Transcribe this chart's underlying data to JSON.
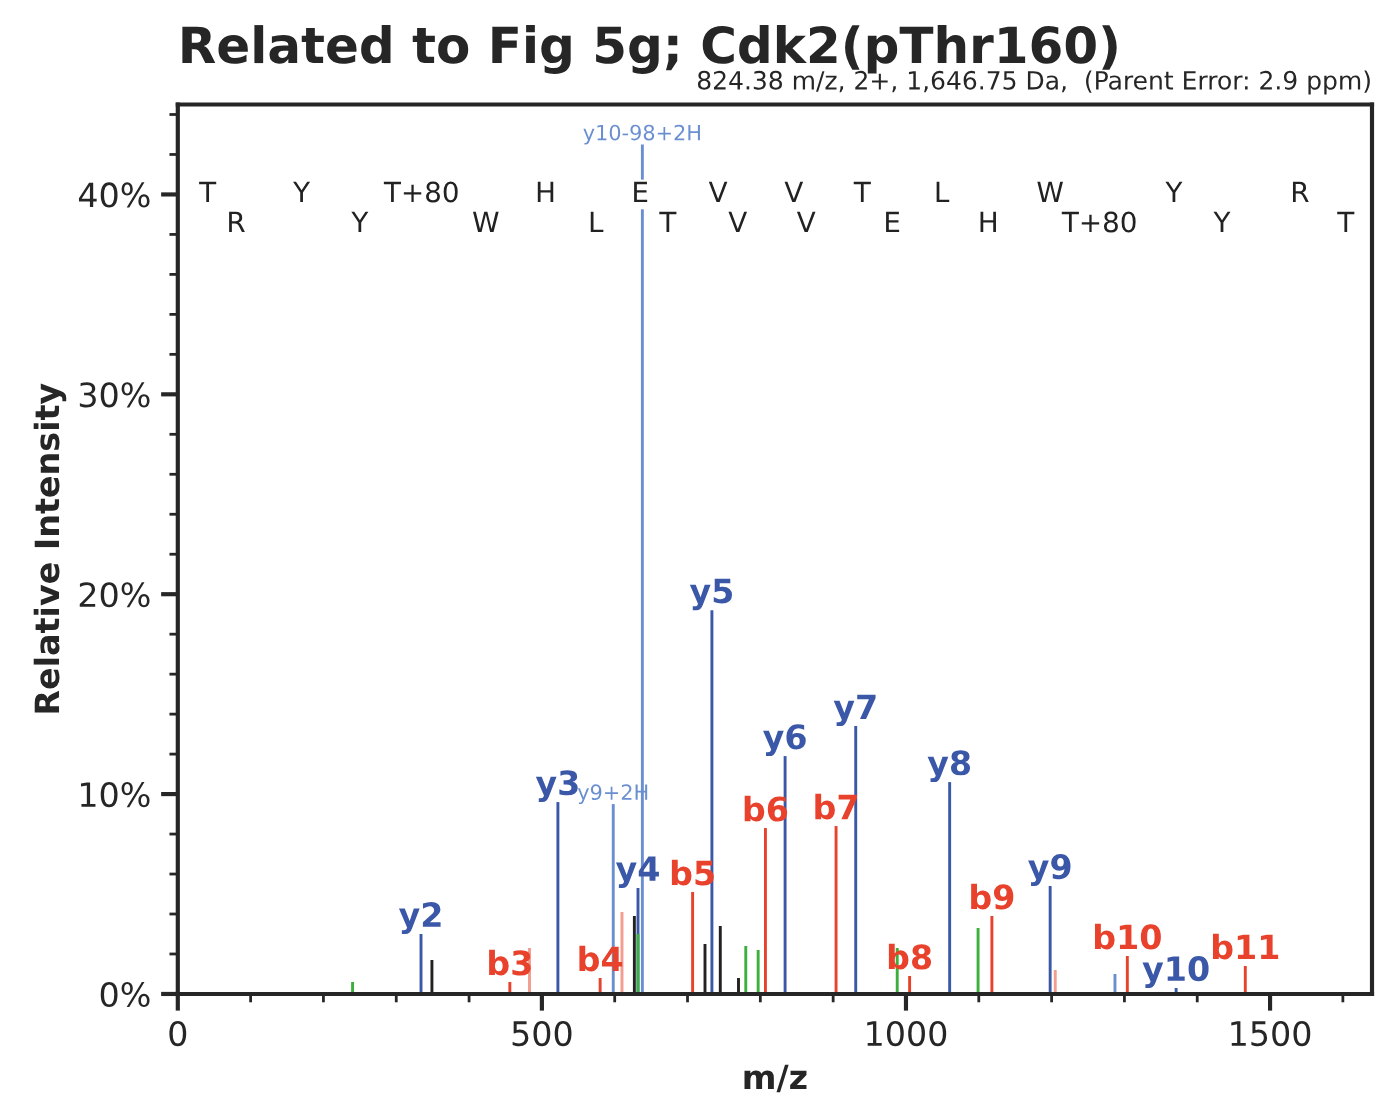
{
  "chart_data": {
    "type": "bar",
    "title": "Related to Fig 5g; Cdk2(pThr160)",
    "subtitle": "824.38 m/z, 2+, 1,646.75 Da,  (Parent Error: 2.9 ppm)",
    "xlabel": "m/z",
    "ylabel": "Relative Intensity",
    "xlim": [
      0,
      1640
    ],
    "xticks": [
      0,
      500,
      1000,
      1500
    ],
    "ylim": [
      0,
      44.5
    ],
    "yticks": [
      {
        "value": 0,
        "label": "0%"
      },
      {
        "value": 10,
        "label": "10%"
      },
      {
        "value": 20,
        "label": "20%"
      },
      {
        "value": 30,
        "label": "30%"
      },
      {
        "value": 40,
        "label": "40%"
      }
    ],
    "grid": false,
    "legend": false,
    "series": [
      {
        "color": "#3b58a8",
        "x": [
          334,
          522,
          632,
          733.5,
          834,
          931,
          1060,
          1198,
          1371
        ],
        "values": [
          3.0,
          9.6,
          5.3,
          19.2,
          11.9,
          13.4,
          10.6,
          5.4,
          0.3
        ],
        "value_labels": [
          "y2",
          "y3",
          "y4",
          "y5",
          "y6",
          "y7",
          "y8",
          "y9",
          "y10"
        ]
      },
      {
        "color": "#e8412c",
        "x": [
          456,
          580,
          707,
          807,
          904,
          1005,
          1118,
          1304,
          1466
        ],
        "values": [
          0.6,
          0.8,
          5.1,
          8.3,
          8.4,
          0.9,
          3.9,
          1.9,
          1.4
        ],
        "value_labels": [
          "b3",
          "b4",
          "b5",
          "b6",
          "b7",
          "b8",
          "b9",
          "b10",
          "b11"
        ]
      },
      {
        "color": "#6a8fd0",
        "x": [
          598,
          638,
          1287
        ],
        "values": [
          9.5,
          42.5,
          1.0
        ],
        "value_labels": [
          "y9+2H",
          "y10-98+2H",
          null
        ]
      },
      {
        "color": "#222222",
        "x": [
          349,
          627,
          724,
          745,
          770
        ],
        "values": [
          1.7,
          3.9,
          2.5,
          3.4,
          0.8
        ]
      },
      {
        "color": "#3cb03c",
        "x": [
          240,
          632,
          780,
          797,
          988,
          1099
        ],
        "values": [
          0.6,
          3.0,
          2.4,
          2.2,
          2.3,
          3.3
        ]
      },
      {
        "color": "#f29d8f",
        "x": [
          483,
          610,
          1205
        ],
        "values": [
          2.3,
          4.1,
          1.2
        ]
      }
    ],
    "annotations": [
      {
        "text": "T",
        "x": 41,
        "y": 40
      },
      {
        "text": "Y",
        "x": 170,
        "y": 40
      },
      {
        "text": "T+80",
        "x": 335,
        "y": 40
      },
      {
        "text": "H",
        "x": 505,
        "y": 40
      },
      {
        "text": "E",
        "x": 635,
        "y": 40
      },
      {
        "text": "V",
        "x": 742,
        "y": 40
      },
      {
        "text": "V",
        "x": 846,
        "y": 40
      },
      {
        "text": "T",
        "x": 940,
        "y": 40
      },
      {
        "text": "L",
        "x": 1049,
        "y": 40
      },
      {
        "text": "W",
        "x": 1198,
        "y": 40
      },
      {
        "text": "Y",
        "x": 1368,
        "y": 40
      },
      {
        "text": "R",
        "x": 1541,
        "y": 40
      },
      {
        "text": "R",
        "x": 80,
        "y": 38.5
      },
      {
        "text": "Y",
        "x": 250,
        "y": 38.5
      },
      {
        "text": "W",
        "x": 423,
        "y": 38.5
      },
      {
        "text": "L",
        "x": 574,
        "y": 38.5
      },
      {
        "text": "T",
        "x": 673,
        "y": 38.5
      },
      {
        "text": "V",
        "x": 769,
        "y": 38.5
      },
      {
        "text": "V",
        "x": 863,
        "y": 38.5
      },
      {
        "text": "E",
        "x": 981,
        "y": 38.5
      },
      {
        "text": "H",
        "x": 1113,
        "y": 38.5
      },
      {
        "text": "T+80",
        "x": 1266,
        "y": 38.5
      },
      {
        "text": "Y",
        "x": 1434,
        "y": 38.5
      },
      {
        "text": "T",
        "x": 1604,
        "y": 38.5
      }
    ]
  }
}
